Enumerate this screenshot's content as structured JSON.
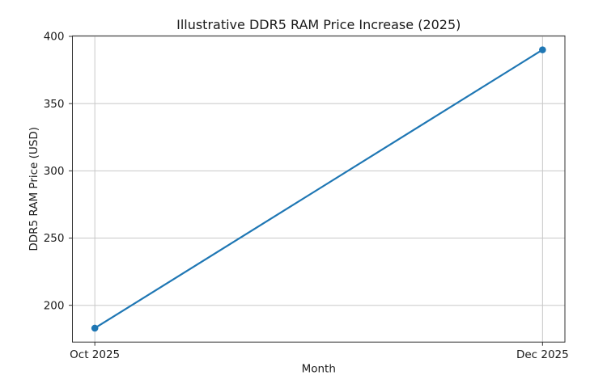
{
  "chart_data": {
    "type": "line",
    "title": "Illustrative DDR5 RAM Price Increase (2025)",
    "xlabel": "Month",
    "ylabel": "DDR5 RAM Price (USD)",
    "categories": [
      "Oct 2025",
      "Dec 2025"
    ],
    "values": [
      183,
      390
    ],
    "yticks": [
      200,
      250,
      300,
      350,
      400
    ],
    "ylim": [
      172.65,
      400.35
    ],
    "xlim": [
      -0.05,
      1.05
    ],
    "grid": true,
    "legend": "none",
    "marker": "circle",
    "colors": {
      "line": "#1f77b4",
      "marker": "#1f77b4",
      "grid": "#c8c8c8",
      "spine": "#333333",
      "tick": "#333333",
      "text": "#1a1a1a",
      "background": "#ffffff"
    }
  }
}
